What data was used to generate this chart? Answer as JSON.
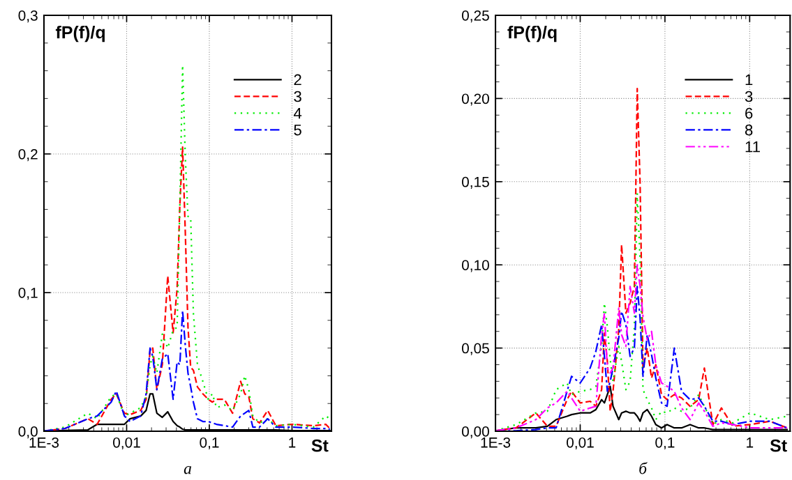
{
  "chart_data": [
    {
      "type": "line",
      "title": "а",
      "ylabel": "fP(f)/q",
      "xlabel": "St",
      "log": "x",
      "grid": true,
      "legend": "top right",
      "xlim": [
        0.001,
        3
      ],
      "xticks": [
        {
          "value": 0.001,
          "label": "1E-3"
        },
        {
          "value": 0.01,
          "label": "0,01"
        },
        {
          "value": 0.1,
          "label": "0,1"
        },
        {
          "value": 1,
          "label": "1"
        }
      ],
      "ylim": [
        0,
        0.3
      ],
      "yticks": [
        {
          "value": 0,
          "label": "0,0"
        },
        {
          "value": 0.1,
          "label": "0,1"
        },
        {
          "value": 0.2,
          "label": "0,2"
        },
        {
          "value": 0.3,
          "label": "0,3"
        }
      ],
      "x": [
        0.001,
        0.0018,
        0.0034,
        0.0044,
        0.0065,
        0.0075,
        0.0094,
        0.011,
        0.0148,
        0.0172,
        0.0192,
        0.0207,
        0.0232,
        0.027,
        0.0314,
        0.0365,
        0.0408,
        0.044,
        0.0475,
        0.0512,
        0.0552,
        0.0595,
        0.0642,
        0.0718,
        0.0835,
        0.097,
        0.109,
        0.122,
        0.152,
        0.191,
        0.239,
        0.268,
        0.3,
        0.336,
        0.405,
        0.508,
        0.637,
        1.0,
        1.82,
        2.56,
        2.87
      ],
      "series": [
        {
          "name": "2",
          "color": "#000000",
          "line_style": "solid",
          "values": [
            0.0002,
            0.0006,
            0.001,
            0.005,
            0.005,
            0.005,
            0.005,
            0.009,
            0.011,
            0.015,
            0.027,
            0.027,
            0.013,
            0.01,
            0.014,
            0.007,
            0.004,
            0.003,
            0.0015,
            0.001,
            0.001,
            0.001,
            0.001,
            0.001,
            0.001,
            0.001,
            0.001,
            0.001,
            0.001,
            0.001,
            0.001,
            0.001,
            0.001,
            0.001,
            0.001,
            0.001,
            0.001,
            0.0005,
            0.0005,
            0.0005,
            0.0005
          ]
        },
        {
          "name": "3",
          "color": "#ff0000",
          "line_style": "dashed",
          "values": [
            0.0002,
            0.002,
            0.009,
            0.005,
            0.023,
            0.027,
            0.013,
            0.012,
            0.015,
            0.023,
            0.058,
            0.06,
            0.03,
            0.048,
            0.112,
            0.071,
            0.103,
            0.163,
            0.205,
            0.144,
            0.075,
            0.046,
            0.044,
            0.032,
            0.027,
            0.023,
            0.021,
            0.023,
            0.023,
            0.013,
            0.036,
            0.027,
            0.025,
            0.009,
            0.006,
            0.015,
            0.004,
            0.005,
            0.004,
            0.005,
            0.002
          ]
        },
        {
          "name": "4",
          "color": "#00ee00",
          "line_style": "dotted",
          "values": [
            0.0002,
            0.003,
            0.013,
            0.009,
            0.025,
            0.027,
            0.011,
            0.013,
            0.017,
            0.025,
            0.048,
            0.054,
            0.042,
            0.07,
            0.06,
            0.073,
            0.075,
            0.163,
            0.264,
            0.198,
            0.155,
            0.154,
            0.085,
            0.048,
            0.036,
            0.023,
            0.027,
            0.017,
            0.019,
            0.015,
            0.027,
            0.04,
            0.03,
            0.011,
            0.006,
            0.009,
            0.004,
            0.005,
            0.003,
            0.011,
            0.009
          ]
        },
        {
          "name": "5",
          "color": "#0000ff",
          "line_style": "dashdot",
          "values": [
            0.0002,
            0.002,
            0.009,
            0.011,
            0.021,
            0.029,
            0.011,
            0.007,
            0.011,
            0.027,
            0.06,
            0.054,
            0.03,
            0.052,
            0.056,
            0.023,
            0.05,
            0.048,
            0.087,
            0.062,
            0.042,
            0.032,
            0.021,
            0.009,
            0.007,
            0.007,
            0.006,
            0.005,
            0.004,
            0.003,
            0.011,
            0.013,
            0.015,
            0.003,
            0.003,
            0.009,
            0.003,
            0.003,
            0.002,
            0.002,
            0.0015
          ]
        }
      ]
    },
    {
      "type": "line",
      "title": "б",
      "ylabel": "fP(f)/q",
      "xlabel": "St",
      "log": "x",
      "grid": true,
      "legend": "top right",
      "xlim": [
        0.001,
        3
      ],
      "xticks": [
        {
          "value": 0.001,
          "label": "1E-3"
        },
        {
          "value": 0.01,
          "label": "0,01"
        },
        {
          "value": 0.1,
          "label": "0,1"
        },
        {
          "value": 1,
          "label": "1"
        }
      ],
      "ylim": [
        0,
        0.25
      ],
      "yticks": [
        {
          "value": 0,
          "label": "0,00"
        },
        {
          "value": 0.05,
          "label": "0,05"
        },
        {
          "value": 0.1,
          "label": "0,10"
        },
        {
          "value": 0.15,
          "label": "0,15"
        },
        {
          "value": 0.2,
          "label": "0,20"
        },
        {
          "value": 0.25,
          "label": "0,25"
        }
      ],
      "x": [
        0.001,
        0.00175,
        0.003,
        0.0041,
        0.0052,
        0.007,
        0.0079,
        0.01,
        0.0131,
        0.0153,
        0.0179,
        0.0193,
        0.0209,
        0.0226,
        0.0244,
        0.0285,
        0.0308,
        0.0346,
        0.0388,
        0.0436,
        0.0471,
        0.0509,
        0.0551,
        0.0618,
        0.0695,
        0.078,
        0.0912,
        0.106,
        0.129,
        0.157,
        0.198,
        0.25,
        0.292,
        0.368,
        0.464,
        0.632,
        1.01,
        1.73,
        2.76
      ],
      "series": [
        {
          "name": "1",
          "color": "#000000",
          "line_style": "solid",
          "values": [
            0.0003,
            0.002,
            0.002,
            0.003,
            0.007,
            0.009,
            0.01,
            0.011,
            0.011,
            0.013,
            0.019,
            0.017,
            0.022,
            0.027,
            0.015,
            0.007,
            0.011,
            0.012,
            0.011,
            0.011,
            0.009,
            0.006,
            0.011,
            0.013,
            0.009,
            0.004,
            0.002,
            0.004,
            0.002,
            0.002,
            0.004,
            0.002,
            0.002,
            0.001,
            0.001,
            0.001,
            0.001,
            0.001,
            0.001
          ]
        },
        {
          "name": "3",
          "color": "#ff0000",
          "line_style": "dashed",
          "values": [
            0.0003,
            0.002,
            0.011,
            0.003,
            0.003,
            0.019,
            0.024,
            0.017,
            0.018,
            0.015,
            0.025,
            0.059,
            0.042,
            0.012,
            0.024,
            0.061,
            0.112,
            0.071,
            0.077,
            0.087,
            0.206,
            0.149,
            0.038,
            0.05,
            0.032,
            0.04,
            0.022,
            0.019,
            0.022,
            0.02,
            0.015,
            0.019,
            0.038,
            0.004,
            0.014,
            0.003,
            0.004,
            0.006,
            0.002
          ]
        },
        {
          "name": "6",
          "color": "#00ee00",
          "line_style": "dotted",
          "values": [
            0.0003,
            0.004,
            0.011,
            0.012,
            0.025,
            0.029,
            0.022,
            0.024,
            0.025,
            0.027,
            0.051,
            0.077,
            0.063,
            0.043,
            0.03,
            0.051,
            0.042,
            0.025,
            0.03,
            0.063,
            0.143,
            0.103,
            0.025,
            0.019,
            0.014,
            0.007,
            0.012,
            0.011,
            0.014,
            0.012,
            0.014,
            0.022,
            0.015,
            0.004,
            0.007,
            0.005,
            0.011,
            0.007,
            0.009
          ]
        },
        {
          "name": "8",
          "color": "#0000ff",
          "line_style": "dashdot",
          "values": [
            0.0,
            0.0003,
            0.001,
            0.002,
            0.002,
            0.024,
            0.033,
            0.029,
            0.038,
            0.048,
            0.064,
            0.045,
            0.024,
            0.03,
            0.038,
            0.056,
            0.072,
            0.064,
            0.045,
            0.05,
            0.087,
            0.068,
            0.033,
            0.058,
            0.046,
            0.032,
            0.017,
            0.015,
            0.05,
            0.024,
            0.019,
            0.02,
            0.015,
            0.006,
            0.006,
            0.004,
            0.006,
            0.006,
            0.002
          ]
        },
        {
          "name": "11",
          "color": "#ff00ff",
          "line_style": "dashdotdot",
          "values": [
            0.0003,
            0.002,
            0.007,
            0.014,
            0.017,
            0.024,
            0.02,
            0.012,
            0.014,
            0.015,
            0.058,
            0.071,
            0.038,
            0.035,
            0.038,
            0.074,
            0.058,
            0.051,
            0.087,
            0.071,
            0.1,
            0.087,
            0.069,
            0.055,
            0.06,
            0.04,
            0.029,
            0.027,
            0.024,
            0.014,
            0.007,
            0.017,
            0.012,
            0.003,
            0.005,
            0.004,
            0.002,
            0.002,
            0.002
          ]
        }
      ]
    }
  ]
}
